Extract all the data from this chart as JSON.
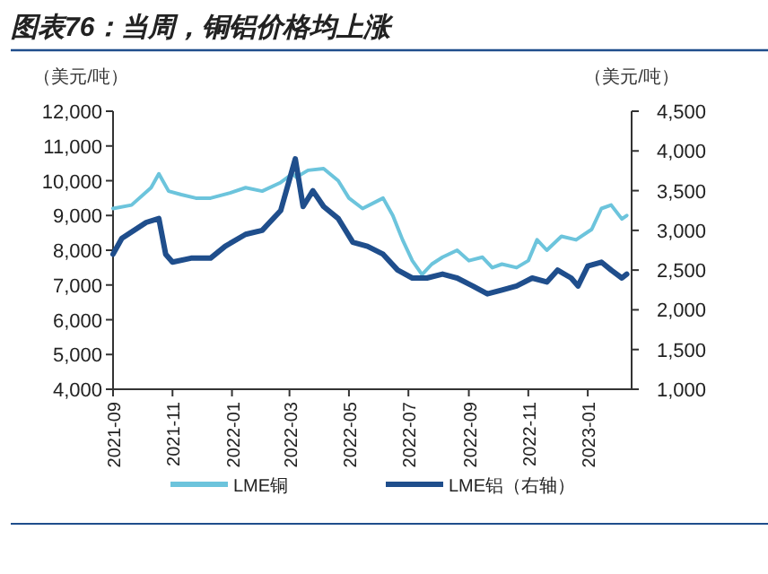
{
  "chart_data": {
    "type": "line",
    "title": "图表76：当周，铜铝价格均上涨",
    "ylabel": "（美元/吨）",
    "y2label": "（美元/吨）",
    "x": [
      "2021-09-01",
      "2021-09-20",
      "2021-10-10",
      "2021-10-18",
      "2021-10-28",
      "2021-11-10",
      "2021-11-25",
      "2021-12-10",
      "2021-12-30",
      "2022-01-15",
      "2022-02-01",
      "2022-02-20",
      "2022-03-04",
      "2022-03-08",
      "2022-03-20",
      "2022-04-05",
      "2022-04-20",
      "2022-05-01",
      "2022-05-15",
      "2022-06-05",
      "2022-06-15",
      "2022-06-25",
      "2022-07-05",
      "2022-07-15",
      "2022-07-25",
      "2022-08-05",
      "2022-08-20",
      "2022-09-01",
      "2022-09-15",
      "2022-09-25",
      "2022-10-05",
      "2022-10-20",
      "2022-11-01",
      "2022-11-10",
      "2022-11-20",
      "2022-12-05",
      "2022-12-20",
      "2023-01-05",
      "2023-01-15",
      "2023-01-25",
      "2023-02-05",
      "2023-02-10"
    ],
    "series": [
      {
        "name": "LME铜",
        "color": "#6cc4dc",
        "values": [
          9200,
          9300,
          9800,
          10200,
          9700,
          9600,
          9500,
          9500,
          9650,
          9800,
          9700,
          9950,
          10200,
          10100,
          10300,
          10350,
          10000,
          9500,
          9200,
          9500,
          9000,
          8300,
          7700,
          7300,
          7600,
          7800,
          8000,
          7700,
          7800,
          7500,
          7600,
          7500,
          7700,
          8300,
          8000,
          8400,
          8300,
          8600,
          9200,
          9300,
          8900,
          9000
        ]
      },
      {
        "name": "LME铝（右轴）",
        "color": "#1f4e8c",
        "axis": "y2",
        "x": [
          "2021-09-01",
          "2021-09-10",
          "2021-10-05",
          "2021-10-18",
          "2021-10-25",
          "2021-11-01",
          "2021-11-20",
          "2021-12-10",
          "2021-12-25",
          "2022-01-15",
          "2022-02-01",
          "2022-02-20",
          "2022-03-07",
          "2022-03-15",
          "2022-03-25",
          "2022-04-05",
          "2022-04-20",
          "2022-05-05",
          "2022-05-20",
          "2022-06-05",
          "2022-06-20",
          "2022-07-05",
          "2022-07-20",
          "2022-08-05",
          "2022-08-20",
          "2022-09-05",
          "2022-09-20",
          "2022-10-05",
          "2022-10-20",
          "2022-11-05",
          "2022-11-20",
          "2022-12-01",
          "2022-12-15",
          "2022-12-22",
          "2023-01-01",
          "2023-01-15",
          "2023-01-25",
          "2023-02-05",
          "2023-02-10"
        ],
        "values": [
          2700,
          2900,
          3100,
          3150,
          2700,
          2600,
          2650,
          2650,
          2800,
          2950,
          3000,
          3250,
          3900,
          3300,
          3500,
          3300,
          3150,
          2850,
          2800,
          2700,
          2500,
          2400,
          2400,
          2450,
          2400,
          2300,
          2200,
          2250,
          2300,
          2400,
          2350,
          2500,
          2400,
          2300,
          2550,
          2600,
          2500,
          2400,
          2450
        ]
      }
    ],
    "xlim": [
      "2021-09-01",
      "2023-02-15"
    ],
    "xticks": [
      "2021-09",
      "2021-11",
      "2022-01",
      "2022-03",
      "2022-05",
      "2022-07",
      "2022-09",
      "2022-11",
      "2023-01"
    ],
    "ylim": [
      4000,
      12000
    ],
    "yticks": [
      {
        "value": 4000,
        "label": "4,000"
      },
      {
        "value": 5000,
        "label": "5,000"
      },
      {
        "value": 6000,
        "label": "6,000"
      },
      {
        "value": 7000,
        "label": "7,000"
      },
      {
        "value": 8000,
        "label": "8,000"
      },
      {
        "value": 9000,
        "label": "9,000"
      },
      {
        "value": 10000,
        "label": "10,000"
      },
      {
        "value": 11000,
        "label": "11,000"
      },
      {
        "value": 12000,
        "label": "12,000"
      }
    ],
    "y2lim": [
      1000,
      4500
    ],
    "y2ticks": [
      {
        "value": 1000,
        "label": "1,000"
      },
      {
        "value": 1500,
        "label": "1,500"
      },
      {
        "value": 2000,
        "label": "2,000"
      },
      {
        "value": 2500,
        "label": "2,500"
      },
      {
        "value": 3000,
        "label": "3,000"
      },
      {
        "value": 3500,
        "label": "3,500"
      },
      {
        "value": 4000,
        "label": "4,000"
      },
      {
        "value": 4500,
        "label": "4,500"
      }
    ],
    "grid": false,
    "legend": "bottom",
    "marker": "none",
    "line_style": "solid"
  }
}
